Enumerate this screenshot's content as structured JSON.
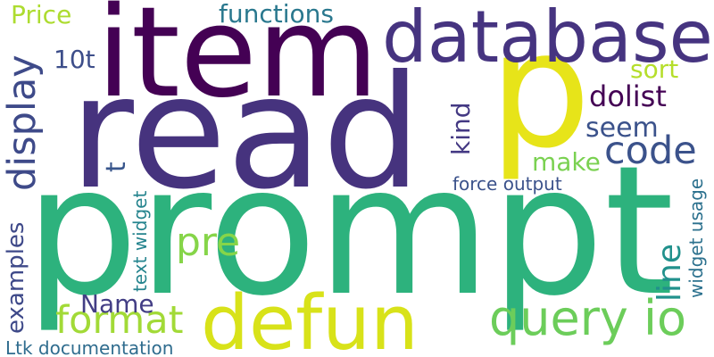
{
  "words": [
    {
      "key": "prompt",
      "text": "prompt",
      "color": "#2db27d"
    },
    {
      "key": "read",
      "text": "read",
      "color": "#46337e"
    },
    {
      "key": "item",
      "text": "item",
      "color": "#440154"
    },
    {
      "key": "p",
      "text": "p",
      "color": "#e7e419"
    },
    {
      "key": "database",
      "text": "database",
      "color": "#463480"
    },
    {
      "key": "defun",
      "text": "defun",
      "color": "#d8e219"
    },
    {
      "key": "query_io",
      "text": "query io",
      "color": "#6ccd5a"
    },
    {
      "key": "code",
      "text": "code",
      "color": "#3b528b"
    },
    {
      "key": "display",
      "text": "display",
      "color": "#3e4a89"
    },
    {
      "key": "format",
      "text": "format",
      "color": "#a2da37"
    },
    {
      "key": "functions",
      "text": "functions",
      "color": "#2a788e"
    },
    {
      "key": "examples",
      "text": "examples",
      "color": "#3e4989"
    },
    {
      "key": "dolist",
      "text": "dolist",
      "color": "#440154"
    },
    {
      "key": "pre",
      "text": "pre",
      "color": "#86d549"
    },
    {
      "key": "Name",
      "text": "Name",
      "color": "#433e85"
    },
    {
      "key": "line",
      "text": "line",
      "color": "#21918c"
    },
    {
      "key": "kind",
      "text": "kind",
      "color": "#443983"
    },
    {
      "key": "seem",
      "text": "seem",
      "color": "#3b528b"
    },
    {
      "key": "Price",
      "text": "Price",
      "color": "#addc30"
    },
    {
      "key": "sort",
      "text": "sort",
      "color": "#b5de2b"
    },
    {
      "key": "make",
      "text": "make",
      "color": "#7ad151"
    },
    {
      "key": "10t",
      "text": "10t",
      "color": "#3d4e8a"
    },
    {
      "key": "t",
      "text": "t",
      "color": "#39568c"
    },
    {
      "key": "force_output",
      "text": "force output",
      "color": "#3b528b"
    },
    {
      "key": "text_widget",
      "text": "text widget",
      "color": "#25848e"
    },
    {
      "key": "widget_usage",
      "text": "widget usage",
      "color": "#2c718e"
    },
    {
      "key": "Ltk_documentation",
      "text": "Ltk documentation",
      "color": "#2f6c8e"
    }
  ]
}
